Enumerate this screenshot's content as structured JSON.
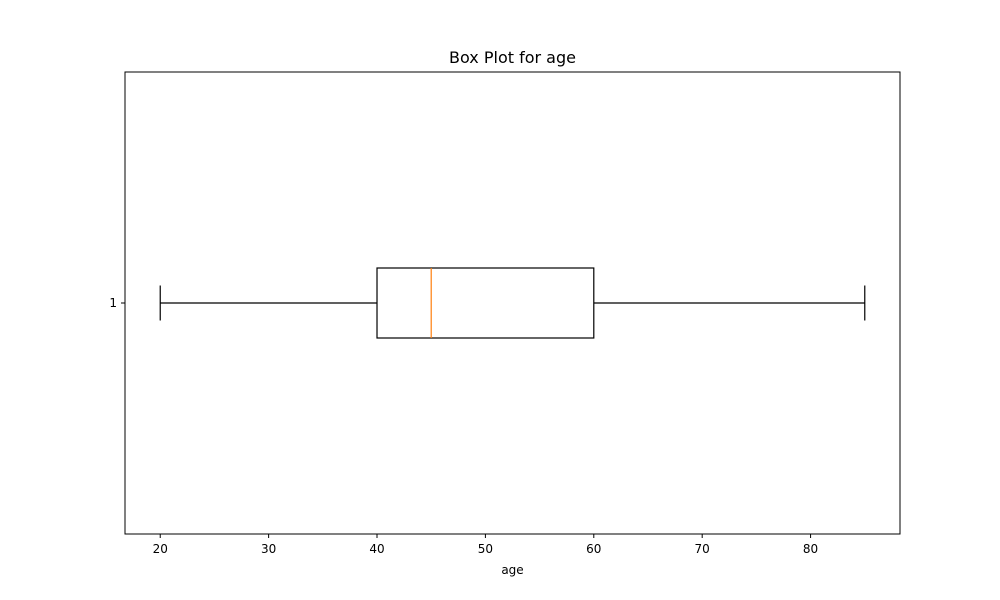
{
  "chart_data": {
    "type": "box",
    "orientation": "horizontal",
    "title": "Box Plot for age",
    "xlabel": "age",
    "ylabel": "",
    "xlim": [
      16.75,
      88.25
    ],
    "x_ticks": [
      20,
      30,
      40,
      50,
      60,
      70,
      80
    ],
    "y_ticks": [
      "1"
    ],
    "grid": false,
    "colors": {
      "box": "#000000",
      "median": "#ff7f0e",
      "whisker": "#000000"
    },
    "series": [
      {
        "category": "1",
        "whisker_low": 20,
        "q1": 40,
        "median": 45,
        "q3": 60,
        "whisker_high": 85
      }
    ]
  }
}
